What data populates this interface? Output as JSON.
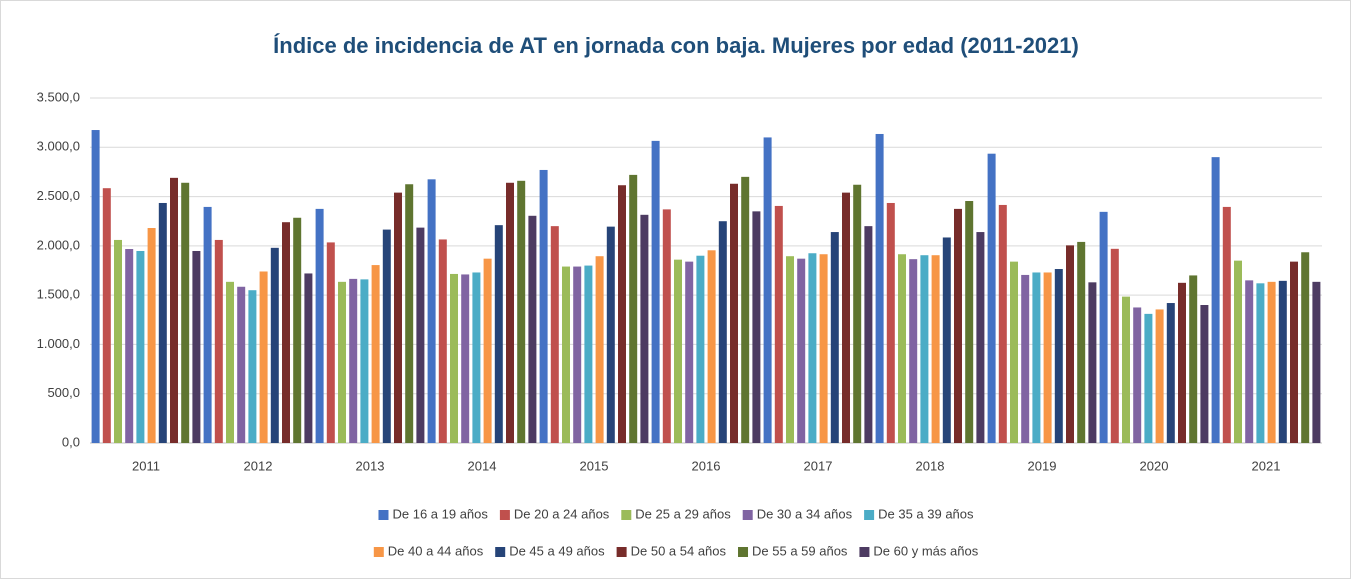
{
  "chart_data": {
    "type": "bar",
    "title": "Índice de incidencia de AT en jornada con baja. Mujeres por edad (2011-2021)",
    "categories": [
      "2011",
      "2012",
      "2013",
      "2014",
      "2015",
      "2016",
      "2017",
      "2018",
      "2019",
      "2020",
      "2021"
    ],
    "series": [
      {
        "name": "De 16 a 19 años",
        "color": "#4472c4",
        "values": [
          3175,
          2395,
          2375,
          2675,
          2770,
          3065,
          3100,
          3135,
          2935,
          2345,
          2900
        ]
      },
      {
        "name": "De 20 a 24 años",
        "color": "#c0504d",
        "values": [
          2585,
          2060,
          2035,
          2065,
          2200,
          2370,
          2405,
          2435,
          2415,
          1970,
          2395
        ]
      },
      {
        "name": "De 25 a 29 años",
        "color": "#9bbb59",
        "values": [
          2060,
          1635,
          1635,
          1715,
          1790,
          1860,
          1895,
          1915,
          1840,
          1485,
          1850
        ]
      },
      {
        "name": "De 30 a 34 años",
        "color": "#8064a2",
        "values": [
          1968,
          1585,
          1665,
          1710,
          1790,
          1840,
          1870,
          1865,
          1705,
          1375,
          1650
        ]
      },
      {
        "name": "De 35 a 39 años",
        "color": "#4bacc6",
        "values": [
          1948,
          1550,
          1660,
          1730,
          1800,
          1900,
          1925,
          1905,
          1730,
          1310,
          1620
        ]
      },
      {
        "name": "De 40 a 44 años",
        "color": "#f79646",
        "values": [
          2181,
          1740,
          1805,
          1870,
          1895,
          1955,
          1915,
          1905,
          1730,
          1355,
          1635
        ]
      },
      {
        "name": "De 45 a 49 años",
        "color": "#264478",
        "values": [
          2435,
          1980,
          2165,
          2210,
          2195,
          2250,
          2140,
          2085,
          1765,
          1420,
          1645
        ]
      },
      {
        "name": "De 50 a 54 años",
        "color": "#772c2a",
        "values": [
          2690,
          2240,
          2540,
          2640,
          2615,
          2630,
          2540,
          2375,
          2005,
          1625,
          1840
        ]
      },
      {
        "name": "De 55 a 59 años",
        "color": "#5f7530",
        "values": [
          2640,
          2285,
          2625,
          2660,
          2720,
          2700,
          2620,
          2455,
          2040,
          1700,
          1935
        ]
      },
      {
        "name": "De 60 y más años",
        "color": "#4d3b62",
        "values": [
          1948,
          1720,
          2185,
          2305,
          2315,
          2350,
          2200,
          2140,
          1630,
          1400,
          1635
        ]
      }
    ],
    "ylim": [
      0,
      3500
    ],
    "yticks": [
      {
        "value": 0,
        "label": "0,0"
      },
      {
        "value": 500,
        "label": "500,0"
      },
      {
        "value": 1000,
        "label": "1.000,0"
      },
      {
        "value": 1500,
        "label": "1.500,0"
      },
      {
        "value": 2000,
        "label": "2.000,0"
      },
      {
        "value": 2500,
        "label": "2.500,0"
      },
      {
        "value": 3000,
        "label": "3.000,0"
      },
      {
        "value": 3500,
        "label": "3.500,0"
      }
    ],
    "grid": true
  }
}
